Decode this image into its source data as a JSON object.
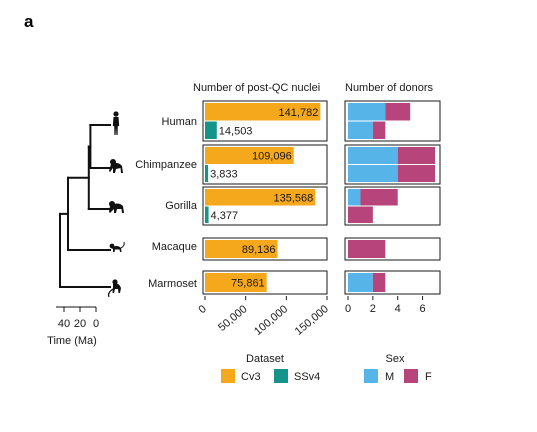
{
  "panel_label": "a",
  "colors": {
    "cv3": "#F5A81C",
    "ssv4": "#15958A",
    "male": "#56B4E9",
    "female": "#B7447A",
    "axis": "#1a1a1a"
  },
  "chart_data": [
    {
      "type": "bar",
      "title": "Number of post-QC nuclei",
      "categories": [
        "Human",
        "Chimpanzee",
        "Gorilla",
        "Macaque",
        "Marmoset"
      ],
      "series": [
        {
          "name": "Cv3",
          "values": [
            141782,
            109096,
            135568,
            89136,
            75861
          ]
        },
        {
          "name": "SSv4",
          "values": [
            14503,
            3833,
            4377,
            null,
            null
          ]
        }
      ],
      "value_labels": {
        "Cv3": [
          "141,782",
          "109,096",
          "135,568",
          "89,136",
          "75,861"
        ],
        "SSv4": [
          "14,503",
          "3,833",
          "4,377",
          "",
          ""
        ]
      },
      "xlim": [
        0,
        150000
      ],
      "xticks": [
        0,
        50000,
        100000,
        150000
      ],
      "xtick_labels": [
        "0",
        "50,000",
        "100,000",
        "150,000"
      ],
      "legend": {
        "title": "Dataset",
        "entries": [
          "Cv3",
          "SSv4"
        ],
        "placement": "bottom"
      }
    },
    {
      "type": "bar",
      "title": "Number of donors",
      "stacked": true,
      "categories": [
        "Human",
        "Chimpanzee",
        "Gorilla",
        "Macaque",
        "Marmoset"
      ],
      "rows": [
        {
          "species": "Human",
          "dataset": "Cv3",
          "M": 3,
          "F": 2
        },
        {
          "species": "Human",
          "dataset": "SSv4",
          "M": 2,
          "F": 1
        },
        {
          "species": "Chimpanzee",
          "dataset": "Cv3",
          "M": 4,
          "F": 3
        },
        {
          "species": "Chimpanzee",
          "dataset": "SSv4",
          "M": 4,
          "F": 3
        },
        {
          "species": "Gorilla",
          "dataset": "Cv3",
          "M": 1,
          "F": 3
        },
        {
          "species": "Gorilla",
          "dataset": "SSv4",
          "M": 0,
          "F": 2
        },
        {
          "species": "Macaque",
          "dataset": "Cv3",
          "M": 0,
          "F": 3
        },
        {
          "species": "Marmoset",
          "dataset": "Cv3",
          "M": 2,
          "F": 1
        }
      ],
      "xlim": [
        0,
        7
      ],
      "xticks": [
        0,
        2,
        4,
        6
      ],
      "xtick_labels": [
        "0",
        "2",
        "4",
        "6"
      ],
      "legend": {
        "title": "Sex",
        "entries": [
          "M",
          "F"
        ],
        "placement": "bottom"
      }
    }
  ],
  "tree": {
    "axis_label": "Time (Ma)",
    "ticks": [
      40,
      20,
      0
    ],
    "tick_labels": [
      "40",
      "20",
      "0"
    ],
    "xlim": [
      50,
      0
    ],
    "divergence_ma": {
      "homo_pan": 7,
      "homininae": 9,
      "hominidae": 35,
      "primates": 45
    }
  }
}
